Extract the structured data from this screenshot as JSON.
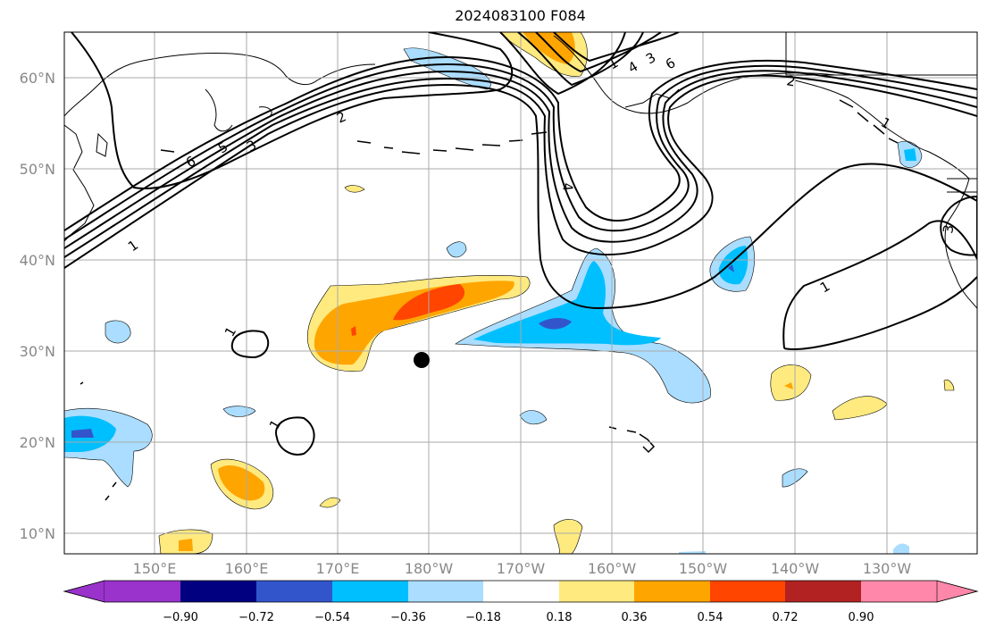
{
  "title": "2024083100 F084",
  "lat_labels": [
    "60°N",
    "50°N",
    "40°N",
    "30°N",
    "20°N",
    "10°N"
  ],
  "lon_labels": [
    "150°E",
    "160°E",
    "170°E",
    "180°W",
    "170°W",
    "160°W",
    "150°W",
    "140°W",
    "130°W"
  ],
  "colorbar": {
    "ticks": [
      "−0.90",
      "−0.72",
      "−0.54",
      "−0.36",
      "−0.18",
      "0.18",
      "0.36",
      "0.54",
      "0.72",
      "0.90"
    ],
    "colors": [
      "#9933cc",
      "#000080",
      "#3355cc",
      "#00bfff",
      "#aaddff",
      "#ffffff",
      "#ffea80",
      "#ffa500",
      "#ff4500",
      "#b22222",
      "#ff88aa"
    ]
  },
  "contour_labels": [
    "1",
    "2",
    "3",
    "4",
    "5",
    "6",
    "1",
    "1",
    "1",
    "4",
    "1",
    "3",
    "6",
    "2",
    "1",
    "3"
  ],
  "colors": {
    "grid": "#aaaaaa",
    "contour": "#000000",
    "marker": "#000000"
  }
}
